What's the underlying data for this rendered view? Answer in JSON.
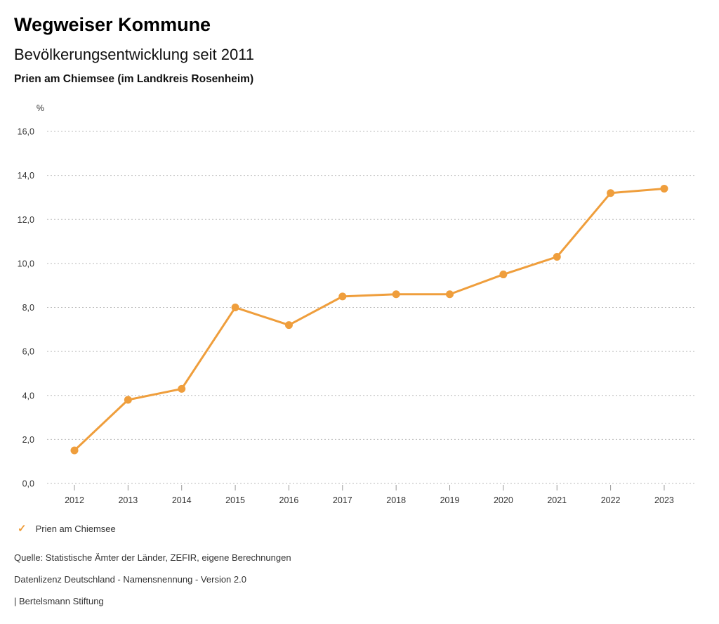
{
  "header": {
    "title": "Wegweiser Kommune",
    "subtitle": "Bevölkerungsentwicklung seit 2011",
    "region": "Prien am Chiemsee (im Landkreis Rosenheim)"
  },
  "chart_data": {
    "type": "line",
    "title": "Bevölkerungsentwicklung seit 2011",
    "unit_label": "%",
    "categories": [
      "2012",
      "2013",
      "2014",
      "2015",
      "2016",
      "2017",
      "2018",
      "2019",
      "2020",
      "2021",
      "2022",
      "2023"
    ],
    "series": [
      {
        "name": "Prien am Chiemsee",
        "color": "#EF9E3C",
        "values": [
          1.5,
          3.8,
          4.3,
          8.0,
          7.2,
          8.5,
          8.6,
          8.6,
          9.5,
          10.3,
          13.2,
          13.4
        ]
      }
    ],
    "xlabel": "",
    "ylabel": "%",
    "ylim": [
      0,
      16
    ],
    "ytick_step": 2,
    "ytick_labels": [
      "0,0",
      "2,0",
      "4,0",
      "6,0",
      "8,0",
      "10,0",
      "12,0",
      "14,0",
      "16,0"
    ],
    "grid": "horizontal-dotted",
    "legend_position": "bottom-left"
  },
  "legend": {
    "items": [
      {
        "label": "Prien am Chiemsee",
        "color": "#EF9E3C",
        "icon": "check",
        "icon_glyph": "✓"
      }
    ]
  },
  "footer": {
    "source": "Quelle: Statistische Ämter der Länder, ZEFIR, eigene Berechnungen",
    "license": "Datenlizenz Deutschland - Namensnennung - Version 2.0",
    "attribution": "| Bertelsmann Stiftung"
  },
  "colors": {
    "series": "#EF9E3C",
    "grid": "#BBBBBB",
    "axis_text": "#333333",
    "tick": "#999999",
    "background": "#FFFFFF"
  }
}
